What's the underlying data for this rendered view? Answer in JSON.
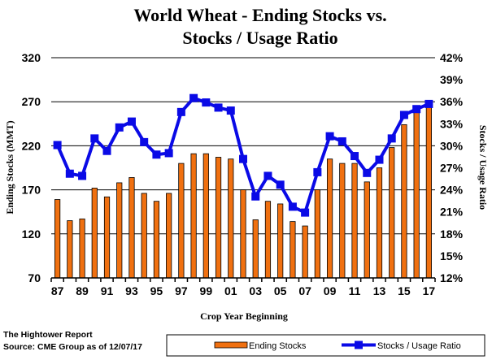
{
  "chart_data": {
    "type": "bar+line",
    "title": [
      "World Wheat - Ending Stocks vs.",
      "Stocks / Usage Ratio"
    ],
    "xlabel": "Crop Year Beginning",
    "ylabel": "Ending Stocks (MMT)",
    "y2label": "Stocks / Usage Ratio",
    "categories": [
      "87",
      "88",
      "89",
      "90",
      "91",
      "92",
      "93",
      "94",
      "95",
      "96",
      "97",
      "98",
      "99",
      "00",
      "01",
      "02",
      "03",
      "04",
      "05",
      "06",
      "07",
      "08",
      "09",
      "10",
      "11",
      "12",
      "13",
      "14",
      "15",
      "16",
      "17"
    ],
    "x_tick_labels": [
      "87",
      "89",
      "91",
      "93",
      "95",
      "97",
      "99",
      "01",
      "03",
      "05",
      "07",
      "09",
      "11",
      "13",
      "15",
      "17"
    ],
    "ylim": [
      70,
      320
    ],
    "y_ticks": [
      70,
      120,
      170,
      220,
      270,
      320
    ],
    "y2lim": [
      12,
      42
    ],
    "y2_ticks": [
      "12%",
      "15%",
      "18%",
      "21%",
      "24%",
      "27%",
      "30%",
      "33%",
      "36%",
      "39%",
      "42%"
    ],
    "grid": true,
    "series": [
      {
        "name": "Ending Stocks",
        "type": "bar",
        "axis": "left",
        "color": "#F07010",
        "values": [
          159,
          135,
          137,
          172,
          162,
          178,
          184,
          166,
          157,
          166,
          200,
          211,
          211,
          207,
          205,
          170,
          136,
          157,
          154,
          134,
          129,
          170,
          205,
          200,
          200,
          179,
          195,
          218,
          244,
          258,
          265
        ]
      },
      {
        "name": "Stocks / Usage Ratio",
        "type": "line",
        "axis": "right",
        "unit": "%",
        "color": "#0A0AE6",
        "values": [
          30.1,
          26.2,
          25.9,
          31.0,
          29.3,
          32.5,
          33.3,
          30.5,
          28.8,
          29.0,
          34.6,
          36.5,
          35.9,
          35.2,
          34.8,
          28.2,
          23.1,
          25.9,
          24.7,
          21.7,
          20.9,
          26.4,
          31.3,
          30.6,
          28.6,
          26.3,
          28.1,
          31.0,
          34.2,
          35.0,
          35.7
        ]
      }
    ],
    "legend": {
      "position": "bottom",
      "items": [
        "Ending Stocks",
        "Stocks / Usage Ratio"
      ]
    }
  },
  "footer": {
    "source_line1": "The Hightower Report",
    "source_line2": "Source: CME Group as of 12/07/17"
  }
}
